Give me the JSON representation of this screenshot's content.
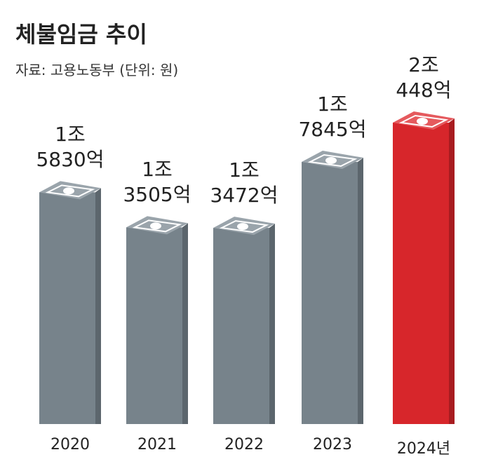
{
  "chart_data": {
    "type": "bar",
    "title": "체불임금 추이",
    "subtitle": "자료: 고용노동부 (단위: 원)",
    "categories": [
      "2020",
      "2021",
      "2022",
      "2023",
      "2024년"
    ],
    "values": [
      15830,
      13505,
      13472,
      17845,
      20448
    ],
    "value_labels": [
      "1조\n5830억",
      "1조\n3505억",
      "1조\n3472억",
      "1조\n7845억",
      "2조\n448억"
    ],
    "colors": [
      "#77838b",
      "#77838b",
      "#77838b",
      "#77838b",
      "#d7262b"
    ]
  }
}
